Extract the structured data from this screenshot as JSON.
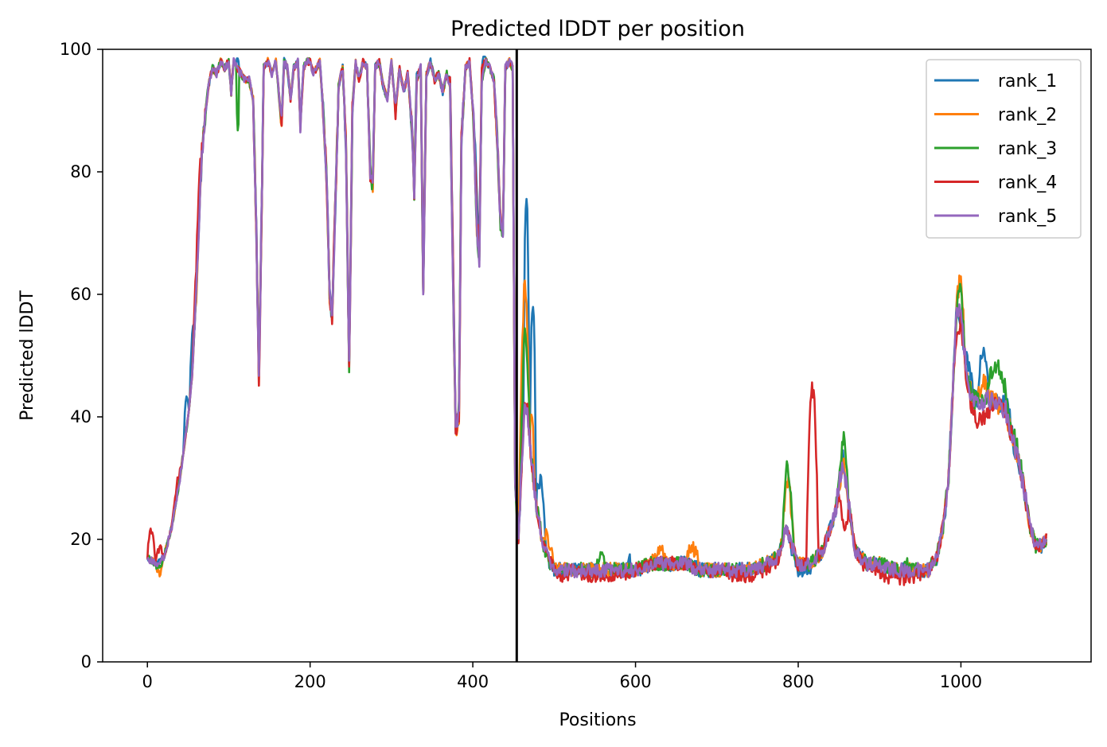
{
  "chart_data": {
    "type": "line",
    "title": "Predicted lDDT per position",
    "xlabel": "Positions",
    "ylabel": "Predicted lDDT",
    "xlim": [
      -55,
      1160
    ],
    "ylim": [
      0,
      100
    ],
    "xticks": [
      0,
      200,
      400,
      600,
      800,
      1000
    ],
    "yticks": [
      0,
      20,
      40,
      60,
      80,
      100
    ],
    "grid": false,
    "legend_position": "top-right",
    "vertical_line": {
      "x": 454,
      "color": "#000000"
    },
    "series": [
      {
        "name": "rank_1",
        "color": "#1f77b4"
      },
      {
        "name": "rank_2",
        "color": "#ff7f0e"
      },
      {
        "name": "rank_3",
        "color": "#2ca02c"
      },
      {
        "name": "rank_4",
        "color": "#d62728"
      },
      {
        "name": "rank_5",
        "color": "#9467bd"
      }
    ],
    "curve_x_range": [
      0,
      1105
    ],
    "base_profile": [
      [
        0,
        17
      ],
      [
        10,
        16
      ],
      [
        20,
        17
      ],
      [
        30,
        22
      ],
      [
        40,
        30
      ],
      [
        50,
        40
      ],
      [
        55,
        47
      ],
      [
        60,
        60
      ],
      [
        65,
        78
      ],
      [
        70,
        88
      ],
      [
        75,
        94
      ],
      [
        80,
        97
      ],
      [
        85,
        96
      ],
      [
        90,
        98
      ],
      [
        95,
        97
      ],
      [
        100,
        98
      ],
      [
        103,
        93
      ],
      [
        106,
        98
      ],
      [
        110,
        97
      ],
      [
        115,
        96
      ],
      [
        120,
        95
      ],
      [
        125,
        95
      ],
      [
        130,
        92
      ],
      [
        134,
        70
      ],
      [
        137,
        46
      ],
      [
        140,
        70
      ],
      [
        143,
        97
      ],
      [
        148,
        98
      ],
      [
        153,
        96
      ],
      [
        158,
        98
      ],
      [
        162,
        92
      ],
      [
        165,
        88
      ],
      [
        168,
        98
      ],
      [
        172,
        97
      ],
      [
        176,
        92
      ],
      [
        180,
        97
      ],
      [
        185,
        98
      ],
      [
        188,
        88
      ],
      [
        192,
        97
      ],
      [
        196,
        98
      ],
      [
        200,
        98
      ],
      [
        204,
        96
      ],
      [
        208,
        97
      ],
      [
        212,
        98
      ],
      [
        216,
        90
      ],
      [
        220,
        80
      ],
      [
        224,
        60
      ],
      [
        227,
        56
      ],
      [
        230,
        70
      ],
      [
        235,
        94
      ],
      [
        240,
        97
      ],
      [
        244,
        85
      ],
      [
        248,
        48
      ],
      [
        252,
        90
      ],
      [
        256,
        98
      ],
      [
        260,
        95
      ],
      [
        265,
        98
      ],
      [
        270,
        97
      ],
      [
        274,
        80
      ],
      [
        277,
        78
      ],
      [
        280,
        97
      ],
      [
        285,
        98
      ],
      [
        290,
        94
      ],
      [
        295,
        92
      ],
      [
        300,
        98
      ],
      [
        305,
        90
      ],
      [
        310,
        97
      ],
      [
        315,
        93
      ],
      [
        320,
        96
      ],
      [
        325,
        88
      ],
      [
        328,
        77
      ],
      [
        331,
        95
      ],
      [
        336,
        97
      ],
      [
        339,
        61
      ],
      [
        343,
        96
      ],
      [
        348,
        98
      ],
      [
        353,
        95
      ],
      [
        358,
        96
      ],
      [
        363,
        93
      ],
      [
        368,
        96
      ],
      [
        372,
        94
      ],
      [
        376,
        60
      ],
      [
        379,
        38
      ],
      [
        383,
        40
      ],
      [
        386,
        85
      ],
      [
        391,
        97
      ],
      [
        396,
        98
      ],
      [
        401,
        88
      ],
      [
        405,
        70
      ],
      [
        408,
        66
      ],
      [
        411,
        95
      ],
      [
        416,
        98
      ],
      [
        421,
        97
      ],
      [
        426,
        95
      ],
      [
        430,
        85
      ],
      [
        434,
        72
      ],
      [
        437,
        70
      ],
      [
        440,
        97
      ],
      [
        445,
        98
      ],
      [
        449,
        97
      ],
      [
        452,
        30
      ],
      [
        456,
        20
      ],
      [
        460,
        32
      ],
      [
        464,
        43
      ],
      [
        468,
        40
      ],
      [
        472,
        33
      ],
      [
        478,
        26
      ],
      [
        485,
        20
      ],
      [
        492,
        17
      ],
      [
        500,
        15
      ],
      [
        520,
        15
      ],
      [
        540,
        15
      ],
      [
        560,
        15
      ],
      [
        580,
        15
      ],
      [
        600,
        15
      ],
      [
        620,
        16
      ],
      [
        640,
        16
      ],
      [
        660,
        16
      ],
      [
        680,
        15
      ],
      [
        700,
        15
      ],
      [
        720,
        15
      ],
      [
        740,
        15
      ],
      [
        760,
        16
      ],
      [
        775,
        17
      ],
      [
        785,
        22
      ],
      [
        792,
        19
      ],
      [
        800,
        16
      ],
      [
        815,
        16
      ],
      [
        830,
        18
      ],
      [
        845,
        24
      ],
      [
        855,
        33
      ],
      [
        862,
        26
      ],
      [
        870,
        18
      ],
      [
        885,
        16
      ],
      [
        900,
        16
      ],
      [
        920,
        15
      ],
      [
        940,
        15
      ],
      [
        960,
        15
      ],
      [
        970,
        17
      ],
      [
        978,
        22
      ],
      [
        985,
        30
      ],
      [
        990,
        45
      ],
      [
        995,
        58
      ],
      [
        1000,
        56
      ],
      [
        1008,
        46
      ],
      [
        1015,
        43
      ],
      [
        1025,
        42
      ],
      [
        1035,
        43
      ],
      [
        1045,
        42
      ],
      [
        1055,
        41
      ],
      [
        1062,
        37
      ],
      [
        1070,
        33
      ],
      [
        1078,
        28
      ],
      [
        1085,
        22
      ],
      [
        1092,
        19
      ],
      [
        1100,
        19
      ],
      [
        1105,
        20
      ]
    ],
    "series_bumps": [
      [
        [
          44,
          51,
          5
        ],
        [
          52,
          58,
          6
        ],
        [
          109,
          113,
          2
        ],
        [
          325,
          333,
          2
        ],
        [
          370,
          378,
          2
        ],
        [
          400,
          410,
          5
        ],
        [
          410,
          416,
          3
        ],
        [
          462,
          470,
          35
        ],
        [
          470,
          478,
          28
        ],
        [
          478,
          490,
          8
        ],
        [
          590,
          595,
          2
        ],
        [
          785,
          822,
          -1
        ],
        [
          1005,
          1015,
          3
        ],
        [
          1020,
          1035,
          9
        ],
        [
          1050,
          1065,
          2
        ]
      ],
      [
        [
          10,
          20,
          -2
        ],
        [
          456,
          470,
          20
        ],
        [
          470,
          476,
          8
        ],
        [
          485,
          500,
          3
        ],
        [
          620,
          640,
          2
        ],
        [
          660,
          680,
          3
        ],
        [
          780,
          795,
          8
        ],
        [
          995,
          1005,
          6
        ],
        [
          1020,
          1035,
          3
        ]
      ],
      [
        [
          10,
          20,
          -1
        ],
        [
          109,
          113,
          -10
        ],
        [
          379,
          388,
          2
        ],
        [
          458,
          470,
          12
        ],
        [
          550,
          565,
          2
        ],
        [
          780,
          795,
          10
        ],
        [
          850,
          862,
          4
        ],
        [
          930,
          940,
          1
        ],
        [
          995,
          1005,
          4
        ],
        [
          1030,
          1060,
          6
        ],
        [
          1060,
          1080,
          2
        ]
      ],
      [
        [
          0,
          10,
          5
        ],
        [
          10,
          20,
          2
        ],
        [
          30,
          42,
          2
        ],
        [
          55,
          68,
          5
        ],
        [
          137,
          141,
          -2
        ],
        [
          370,
          380,
          2
        ],
        [
          400,
          416,
          2
        ],
        [
          500,
          520,
          -1
        ],
        [
          520,
          600,
          -1
        ],
        [
          700,
          780,
          -1
        ],
        [
          810,
          825,
          28
        ],
        [
          850,
          862,
          -9
        ],
        [
          870,
          960,
          -1.5
        ],
        [
          990,
          1000,
          -4
        ],
        [
          1000,
          1045,
          -3
        ],
        [
          1062,
          1070,
          1
        ]
      ],
      []
    ]
  }
}
